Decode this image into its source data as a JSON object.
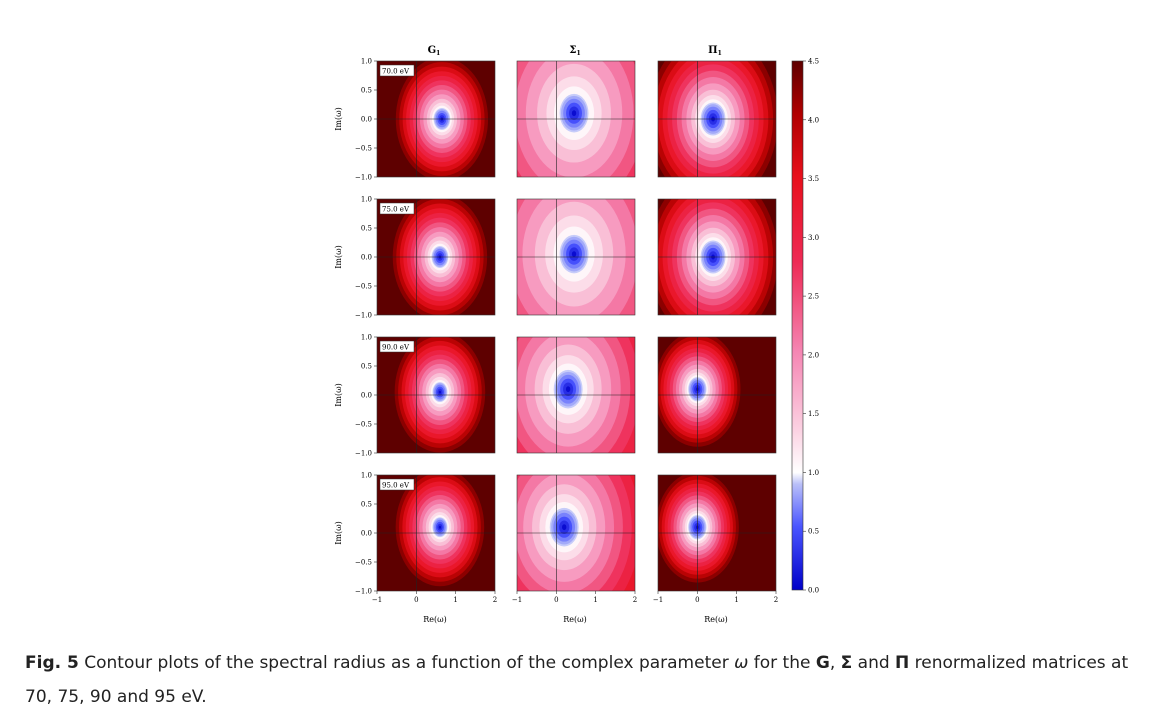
{
  "figure": {
    "column_titles": [
      "G",
      "Σ",
      "Π"
    ],
    "column_title_subscript": "1",
    "row_energy_labels": [
      "70.0 eV",
      "75.0 eV",
      "90.0 eV",
      "95.0 eV"
    ],
    "y_axis_label": "Im(ω)",
    "x_axis_label": "Re(ω)",
    "y_ticks": [
      "1.0",
      "0.5",
      "0.0",
      "−0.5",
      "−1.0"
    ],
    "x_ticks": [
      "−1",
      "0",
      "1",
      "2"
    ],
    "colorbar_ticks": [
      "4.5",
      "4.0",
      "3.5",
      "3.0",
      "2.5",
      "2.0",
      "1.5",
      "1.0",
      "0.5",
      "0.0"
    ],
    "colors": {
      "low": "#0a0ad0",
      "mid": "#ffffff",
      "high": "#ee0a1a",
      "max": "#6e0000"
    }
  },
  "chart_data": {
    "type": "heatmap",
    "quantity": "spectral radius",
    "x": {
      "label": "Re(ω)",
      "range": [
        -1,
        2
      ],
      "ticks": [
        -1,
        0,
        1,
        2
      ]
    },
    "y": {
      "label": "Im(ω)",
      "range": [
        -1,
        1
      ],
      "ticks": [
        1.0,
        0.5,
        0.0,
        -0.5,
        -1.0
      ]
    },
    "colorbar": {
      "range": [
        0.0,
        4.5
      ],
      "ticks": [
        0.0,
        0.5,
        1.0,
        1.5,
        2.0,
        2.5,
        3.0,
        3.5,
        4.0,
        4.5
      ]
    },
    "panels": [
      {
        "row": "70.0 eV",
        "matrix": "G",
        "min_center": [
          0.65,
          0.0
        ],
        "core_radius": 0.2,
        "gradient": 3.6,
        "pattern": "concentric"
      },
      {
        "row": "70.0 eV",
        "matrix": "Σ",
        "min_center": [
          0.45,
          0.1
        ],
        "core_radius": 0.35,
        "gradient": 1.1,
        "pattern": "concentric"
      },
      {
        "row": "70.0 eV",
        "matrix": "Π",
        "min_center": [
          0.4,
          0.0
        ],
        "core_radius": 0.3,
        "gradient": 2.6,
        "pattern": "concentric"
      },
      {
        "row": "75.0 eV",
        "matrix": "G",
        "min_center": [
          0.6,
          0.0
        ],
        "core_radius": 0.2,
        "gradient": 3.5,
        "pattern": "concentric"
      },
      {
        "row": "75.0 eV",
        "matrix": "Σ",
        "min_center": [
          0.45,
          0.05
        ],
        "core_radius": 0.35,
        "gradient": 1.0,
        "pattern": "concentric"
      },
      {
        "row": "75.0 eV",
        "matrix": "Π",
        "min_center": [
          0.4,
          0.0
        ],
        "core_radius": 0.3,
        "gradient": 2.6,
        "pattern": "concentric"
      },
      {
        "row": "90.0 eV",
        "matrix": "G",
        "min_center": [
          0.6,
          0.05
        ],
        "core_radius": 0.18,
        "gradient": 3.6,
        "pattern": "concentric"
      },
      {
        "row": "90.0 eV",
        "matrix": "Σ",
        "min_center": [
          0.3,
          0.1
        ],
        "core_radius": 0.35,
        "gradient": 1.3,
        "pattern": "concentric"
      },
      {
        "row": "90.0 eV",
        "matrix": "Π",
        "min_center": [
          0.0,
          0.1
        ],
        "core_radius": 0.22,
        "gradient": 4.0,
        "pattern": "concentric"
      },
      {
        "row": "95.0 eV",
        "matrix": "G",
        "min_center": [
          0.6,
          0.1
        ],
        "core_radius": 0.18,
        "gradient": 3.7,
        "pattern": "concentric"
      },
      {
        "row": "95.0 eV",
        "matrix": "Σ",
        "min_center": [
          0.2,
          0.1
        ],
        "core_radius": 0.35,
        "gradient": 1.4,
        "pattern": "concentric"
      },
      {
        "row": "95.0 eV",
        "matrix": "Π",
        "min_center": [
          0.0,
          0.1
        ],
        "core_radius": 0.22,
        "gradient": 4.2,
        "pattern": "concentric"
      }
    ]
  },
  "caption": {
    "label": "Fig. 5",
    "text_1": " Contour plots of the spectral radius as a function of the complex parameter ",
    "omega": "ω",
    "text_2": " for the ",
    "g": "G",
    "sep_1": ", ",
    "sigma": "Σ",
    "sep_2": " and ",
    "pi": "Π",
    "text_3": " renormalized matrices at 70, 75, 90 and 95 eV."
  }
}
